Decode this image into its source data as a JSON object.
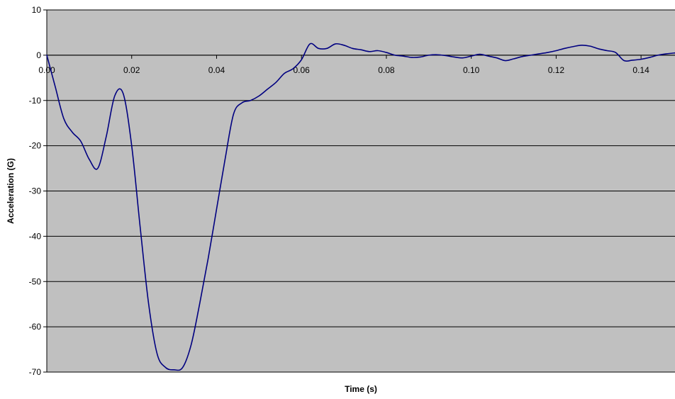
{
  "chart_data": {
    "type": "line",
    "title": "",
    "xlabel": "Time (s)",
    "ylabel": "Acceleration (G)",
    "xlim": [
      0,
      0.148
    ],
    "ylim": [
      -70,
      10
    ],
    "x_ticks": [
      0.0,
      0.02,
      0.04,
      0.06,
      0.08,
      0.1,
      0.12,
      0.14
    ],
    "x_tick_labels": [
      "0.00",
      "0.02",
      "0.04",
      "0.06",
      "0.08",
      "0.10",
      "0.12",
      "0.14"
    ],
    "y_ticks": [
      10,
      0,
      -10,
      -20,
      -30,
      -40,
      -50,
      -60,
      -70
    ],
    "y_tick_labels": [
      "10",
      "0",
      "-10",
      "-20",
      "-30",
      "-40",
      "-50",
      "-60",
      "-70"
    ],
    "grid": "horizontal",
    "plot_background": "#c0c0c0",
    "gridline_color": "#000000",
    "series": [
      {
        "color": "#000080",
        "x": [
          0.0,
          0.002,
          0.004,
          0.006,
          0.008,
          0.01,
          0.012,
          0.014,
          0.016,
          0.018,
          0.02,
          0.022,
          0.024,
          0.026,
          0.028,
          0.03,
          0.032,
          0.034,
          0.036,
          0.038,
          0.04,
          0.042,
          0.044,
          0.046,
          0.048,
          0.05,
          0.052,
          0.054,
          0.056,
          0.058,
          0.06,
          0.062,
          0.064,
          0.066,
          0.068,
          0.07,
          0.072,
          0.074,
          0.076,
          0.078,
          0.08,
          0.082,
          0.084,
          0.086,
          0.088,
          0.09,
          0.092,
          0.094,
          0.096,
          0.098,
          0.1,
          0.102,
          0.104,
          0.106,
          0.108,
          0.11,
          0.112,
          0.114,
          0.116,
          0.118,
          0.12,
          0.122,
          0.124,
          0.126,
          0.128,
          0.13,
          0.132,
          0.134,
          0.136,
          0.138,
          0.14,
          0.142,
          0.144,
          0.146,
          0.148
        ],
        "y": [
          0,
          -7,
          -14,
          -17,
          -19,
          -23,
          -25,
          -18,
          -9,
          -8.5,
          -20,
          -38,
          -55,
          -66,
          -69,
          -69.5,
          -69,
          -64,
          -55,
          -45,
          -34,
          -23,
          -13,
          -10.5,
          -10,
          -9,
          -7.5,
          -6,
          -4,
          -3,
          -1,
          2.5,
          1.5,
          1.5,
          2.5,
          2.2,
          1.5,
          1.2,
          0.8,
          1,
          0.6,
          0,
          -0.2,
          -0.5,
          -0.4,
          0,
          0.1,
          -0.1,
          -0.4,
          -0.6,
          -0.2,
          0.2,
          -0.2,
          -0.6,
          -1.2,
          -0.8,
          -0.3,
          0,
          0.3,
          0.6,
          1.0,
          1.5,
          1.9,
          2.2,
          2.0,
          1.4,
          1.0,
          0.6,
          -1.2,
          -1.1,
          -0.9,
          -0.5,
          0,
          0.3,
          0.5
        ]
      }
    ]
  }
}
